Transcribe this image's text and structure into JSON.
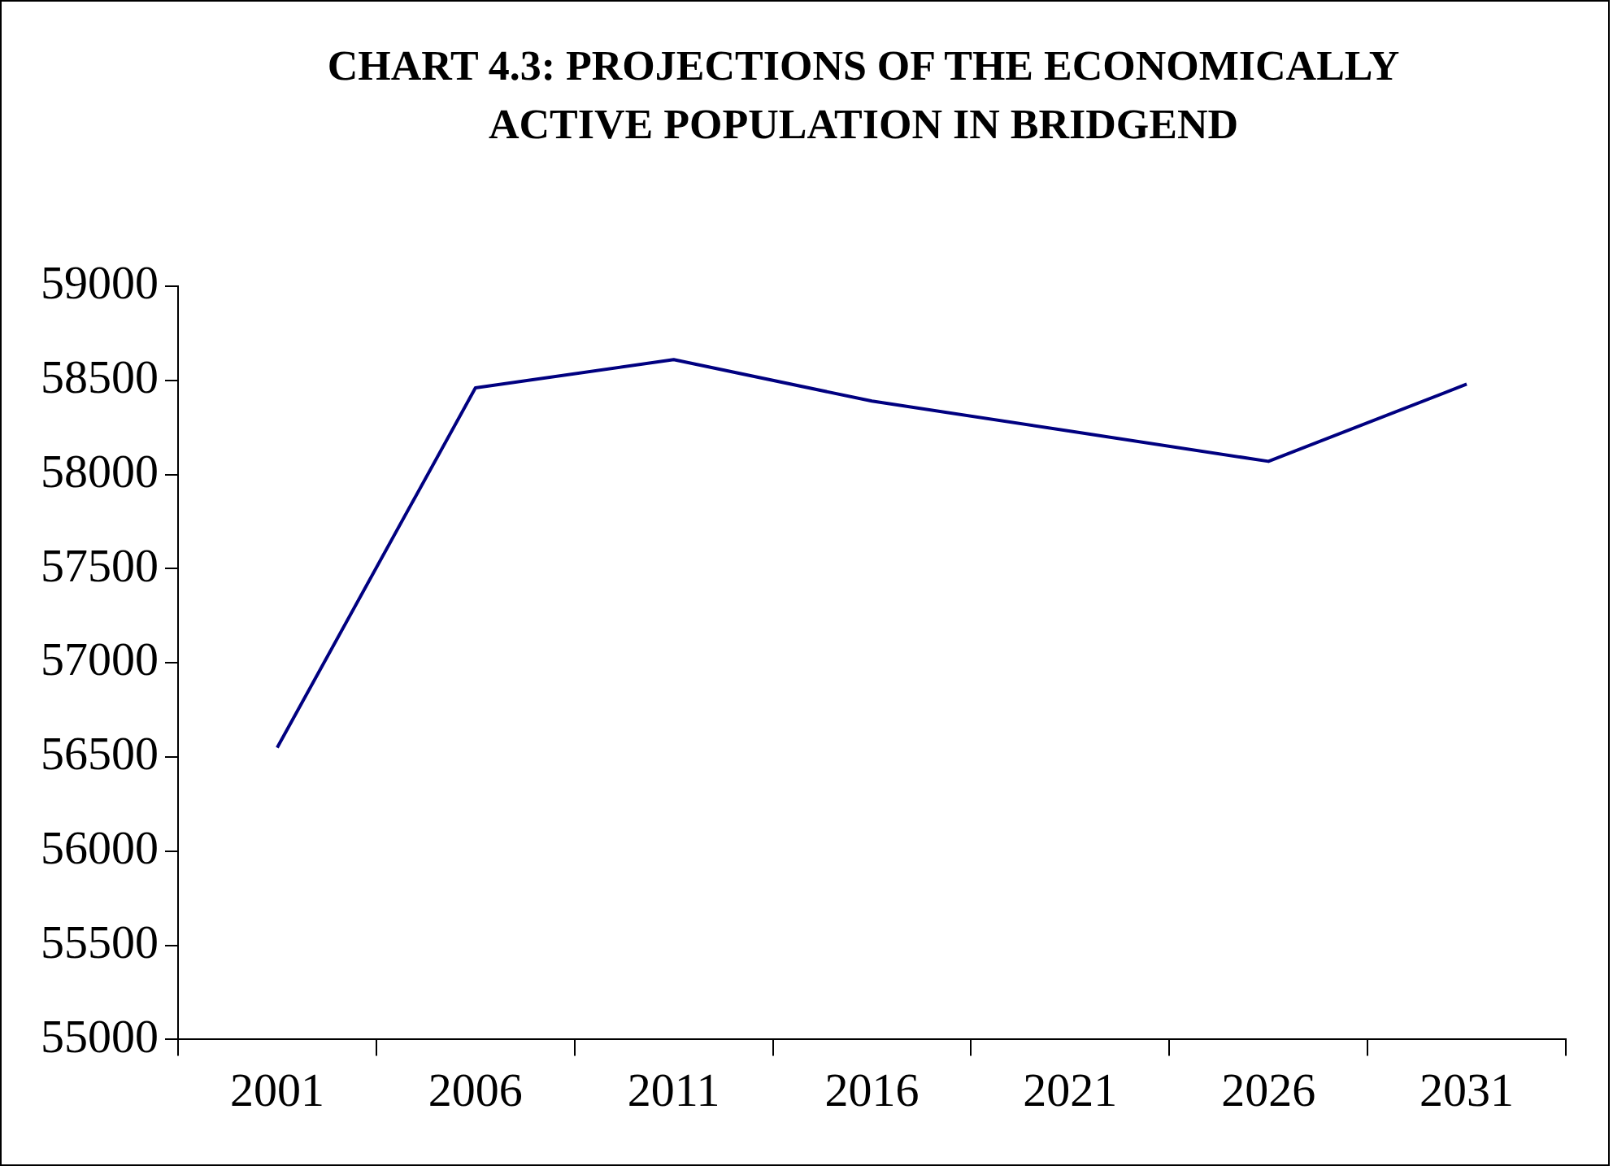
{
  "chart_data": {
    "type": "line",
    "title": "CHART 4.3:  PROJECTIONS OF THE ECONOMICALLY ACTIVE POPULATION IN BRIDGEND",
    "categories": [
      "2001",
      "2006",
      "2011",
      "2016",
      "2021",
      "2026",
      "2031"
    ],
    "series": [
      {
        "color": "#000080",
        "values": [
          56550,
          58460,
          58610,
          58390,
          58230,
          58070,
          58480
        ]
      }
    ],
    "ylim": [
      55000,
      59000
    ],
    "yticks": [
      55000,
      55500,
      56000,
      56500,
      57000,
      57500,
      58000,
      58500,
      59000
    ],
    "grid": false,
    "legend": false,
    "marker": "none",
    "line_style": "solid"
  }
}
